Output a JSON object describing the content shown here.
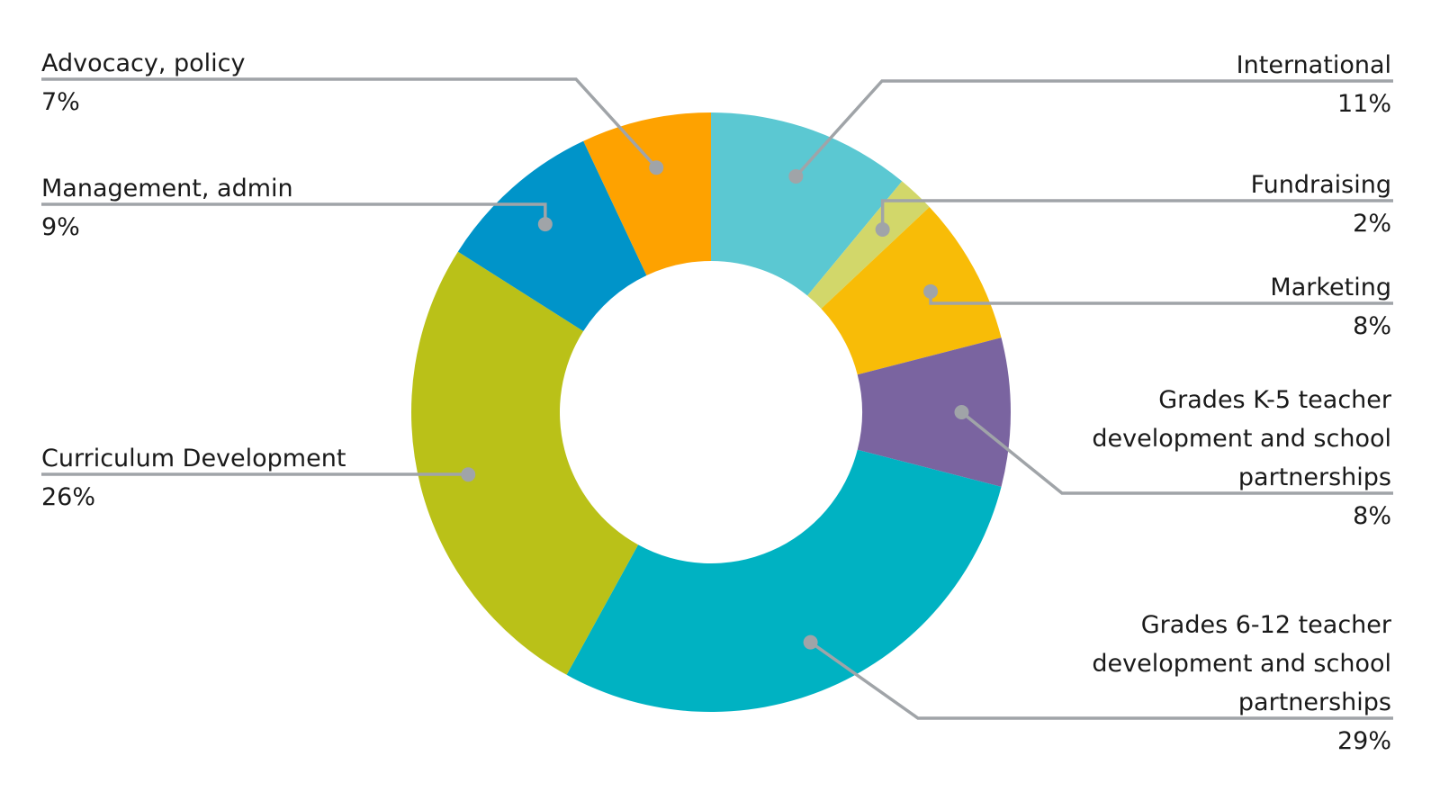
{
  "chart_data": {
    "type": "pie",
    "variant": "donut",
    "title": "",
    "slices": [
      {
        "label_lines": [
          "International"
        ],
        "value": 11,
        "value_label": "11%",
        "color": "#5BC8D2"
      },
      {
        "label_lines": [
          "Fundraising"
        ],
        "value": 2,
        "value_label": "2%",
        "color": "#D2D76A"
      },
      {
        "label_lines": [
          "Marketing"
        ],
        "value": 8,
        "value_label": "8%",
        "color": "#F8BC07"
      },
      {
        "label_lines": [
          "Grades K-5 teacher",
          "development and school",
          "partnerships"
        ],
        "value": 8,
        "value_label": "8%",
        "color": "#7A64A0"
      },
      {
        "label_lines": [
          "Grades 6-12 teacher",
          "development and school",
          "partnerships"
        ],
        "value": 29,
        "value_label": "29%",
        "color": "#00B2C2"
      },
      {
        "label_lines": [
          "Curriculum Development"
        ],
        "value": 26,
        "value_label": "26%",
        "color": "#BAC118"
      },
      {
        "label_lines": [
          "Management, admin"
        ],
        "value": 9,
        "value_label": "9%",
        "color": "#0094C9"
      },
      {
        "label_lines": [
          "Advocacy, policy"
        ],
        "value": 7,
        "value_label": "7%",
        "color": "#FEA200"
      }
    ],
    "legend": "callout labels with leader lines",
    "leader_color": "#A0A4A8"
  }
}
